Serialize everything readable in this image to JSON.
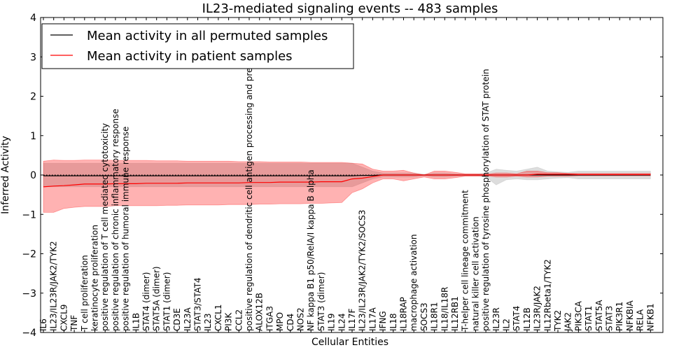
{
  "chart_data": {
    "type": "line",
    "title": "IL23-mediated signaling events -- 483 samples",
    "xlabel": "Cellular Entities",
    "ylabel": "Inferred Activity",
    "ylim": [
      -4,
      4
    ],
    "yticks": [
      -4,
      -3,
      -2,
      -1,
      0,
      1,
      2,
      3,
      4
    ],
    "grid": false,
    "legend_position": "top-left",
    "categories": [
      "IL6",
      "IL23/IL23R/JAK2/TYK2",
      "CXCL9",
      "TNF",
      "T cell proliferation",
      "keratinocyte proliferation",
      "positive regulation of T cell mediated cytotoxicity",
      "positive regulation of chronic inflammatory response",
      "positive regulation of humoral immune response",
      "IL1B",
      "STAT4 (dimer)",
      "STAT5A (dimer)",
      "STAT1 (dimer)",
      "CD3E",
      "IL23A",
      "STAT3/STAT4",
      "IL23",
      "CXCL1",
      "PI3K",
      "CCL2",
      "positive regulation of dendritic cell antigen processing and presentation",
      "ALOX12B",
      "ITGA3",
      "MPO",
      "CD4",
      "NOS2",
      "NF kappa B1 p50/RelA/I kappa B alpha",
      "STAT3 (dimer)",
      "IL19",
      "IL24",
      "IL17F",
      "IL23/IL23R/JAK2/TYK2/SOCS3",
      "IL17A",
      "IFNG",
      "IL18",
      "IL18RAP",
      "macrophage activation",
      "SOCS3",
      "IL18R1",
      "IL18/IL18R",
      "IL12RB1",
      "T-helper cell lineage commitment",
      "natural killer cell activation",
      "positive regulation of tyrosine phosphorylation of STAT protein",
      "IL23R",
      "IL2",
      "STAT4",
      "IL12B",
      "IL23R/JAK2",
      "IL12Rbeta1/TYK2",
      "TYK2",
      "JAK2",
      "PIK3CA",
      "STAT1",
      "STAT5A",
      "STAT3",
      "PIK3R1",
      "NFKBIA",
      "RELA",
      "NFKB1"
    ],
    "series": [
      {
        "name": "Mean activity in all permuted samples",
        "color": "#000000",
        "values": [
          -0.02,
          -0.02,
          -0.02,
          -0.02,
          -0.02,
          -0.02,
          -0.02,
          -0.02,
          -0.02,
          -0.02,
          -0.02,
          -0.02,
          -0.02,
          -0.02,
          -0.02,
          -0.02,
          -0.02,
          -0.02,
          -0.02,
          -0.02,
          -0.02,
          -0.02,
          -0.02,
          -0.02,
          -0.02,
          -0.02,
          -0.02,
          -0.02,
          -0.02,
          -0.02,
          -0.02,
          -0.01,
          -0.01,
          0.0,
          0.0,
          0.0,
          0.0,
          0.0,
          0.0,
          0.0,
          0.0,
          0.0,
          0.0,
          0.0,
          0.0,
          0.0,
          0.0,
          0.0,
          0.0,
          0.0,
          0.0,
          0.0,
          0.0,
          0.0,
          0.0,
          0.0,
          0.0,
          0.0,
          0.0,
          0.0
        ],
        "lower": [
          -0.3,
          -0.3,
          -0.3,
          -0.3,
          -0.3,
          -0.3,
          -0.3,
          -0.3,
          -0.3,
          -0.3,
          -0.3,
          -0.3,
          -0.3,
          -0.3,
          -0.3,
          -0.3,
          -0.3,
          -0.3,
          -0.3,
          -0.3,
          -0.3,
          -0.3,
          -0.3,
          -0.3,
          -0.3,
          -0.3,
          -0.3,
          -0.3,
          -0.3,
          -0.3,
          -0.3,
          -0.2,
          -0.1,
          -0.05,
          -0.05,
          -0.05,
          -0.05,
          -0.02,
          -0.05,
          -0.05,
          -0.03,
          -0.02,
          -0.02,
          -0.05,
          -0.25,
          -0.12,
          -0.1,
          -0.12,
          -0.12,
          -0.1,
          -0.08,
          -0.07,
          -0.1,
          -0.1,
          -0.1,
          -0.1,
          -0.1,
          -0.1,
          -0.1,
          -0.1
        ],
        "upper": [
          0.3,
          0.3,
          0.3,
          0.3,
          0.3,
          0.3,
          0.3,
          0.3,
          0.3,
          0.3,
          0.3,
          0.3,
          0.3,
          0.3,
          0.3,
          0.3,
          0.3,
          0.3,
          0.3,
          0.3,
          0.3,
          0.3,
          0.3,
          0.3,
          0.3,
          0.3,
          0.3,
          0.3,
          0.3,
          0.3,
          0.3,
          0.2,
          0.1,
          0.05,
          0.05,
          0.05,
          0.05,
          0.02,
          0.05,
          0.05,
          0.03,
          0.02,
          0.02,
          0.05,
          0.15,
          0.12,
          0.1,
          0.15,
          0.2,
          0.1,
          0.08,
          0.07,
          0.1,
          0.1,
          0.1,
          0.1,
          0.1,
          0.1,
          0.1,
          0.1
        ]
      },
      {
        "name": "Mean activity in patient samples",
        "color": "#ff0000",
        "values": [
          -0.3,
          -0.28,
          -0.27,
          -0.25,
          -0.23,
          -0.23,
          -0.23,
          -0.22,
          -0.22,
          -0.22,
          -0.21,
          -0.21,
          -0.21,
          -0.21,
          -0.2,
          -0.2,
          -0.2,
          -0.2,
          -0.2,
          -0.2,
          -0.19,
          -0.19,
          -0.19,
          -0.18,
          -0.18,
          -0.18,
          -0.18,
          -0.17,
          -0.17,
          -0.17,
          -0.1,
          -0.08,
          -0.04,
          0.0,
          0.0,
          0.0,
          0.0,
          0.0,
          0.0,
          0.0,
          0.0,
          0.0,
          0.0,
          0.0,
          0.0,
          0.0,
          0.0,
          0.0,
          0.02,
          0.02,
          0.02,
          0.02,
          0.01,
          0.01,
          0.01,
          0.01,
          0.01,
          0.01,
          0.01,
          0.01
        ],
        "lower": [
          -0.95,
          -0.95,
          -0.85,
          -0.82,
          -0.8,
          -0.8,
          -0.8,
          -0.78,
          -0.78,
          -0.78,
          -0.78,
          -0.78,
          -0.77,
          -0.77,
          -0.76,
          -0.76,
          -0.76,
          -0.76,
          -0.75,
          -0.75,
          -0.75,
          -0.74,
          -0.74,
          -0.73,
          -0.73,
          -0.73,
          -0.72,
          -0.72,
          -0.71,
          -0.7,
          -0.45,
          -0.35,
          -0.2,
          -0.1,
          -0.1,
          -0.15,
          -0.1,
          -0.05,
          -0.1,
          -0.1,
          -0.07,
          -0.03,
          -0.03,
          -0.02,
          -0.05,
          -0.05,
          -0.03,
          -0.05,
          -0.05,
          -0.03,
          -0.03,
          -0.03,
          -0.02,
          -0.02,
          -0.02,
          -0.02,
          -0.02,
          -0.02,
          -0.02,
          -0.02
        ],
        "upper": [
          0.35,
          0.38,
          0.37,
          0.37,
          0.38,
          0.38,
          0.38,
          0.37,
          0.37,
          0.37,
          0.37,
          0.36,
          0.36,
          0.36,
          0.35,
          0.35,
          0.35,
          0.35,
          0.35,
          0.34,
          0.34,
          0.34,
          0.33,
          0.33,
          0.33,
          0.33,
          0.32,
          0.32,
          0.32,
          0.32,
          0.3,
          0.28,
          0.15,
          0.1,
          0.1,
          0.12,
          0.05,
          0.0,
          0.1,
          0.1,
          0.07,
          0.03,
          0.03,
          0.02,
          0.05,
          0.05,
          0.03,
          0.1,
          0.1,
          0.06,
          0.06,
          0.04,
          0.04,
          0.04,
          0.04,
          0.04,
          0.04,
          0.04,
          0.04,
          0.04
        ]
      }
    ]
  }
}
